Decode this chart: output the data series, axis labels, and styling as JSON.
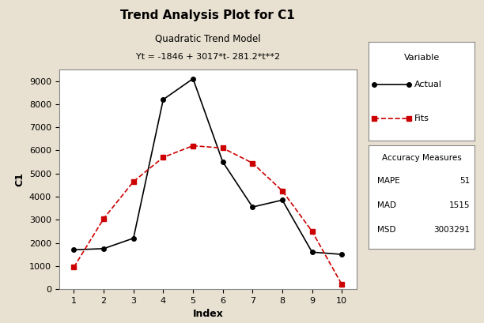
{
  "title": "Trend Analysis Plot for C1",
  "subtitle1": "Quadratic Trend Model",
  "subtitle2": "Yt = -1846 + 3017*t- 281.2*t**2",
  "xlabel": "Index",
  "ylabel": "C1",
  "x": [
    1,
    2,
    3,
    4,
    5,
    6,
    7,
    8,
    9,
    10
  ],
  "actual": [
    1700,
    1750,
    2200,
    8200,
    9100,
    5500,
    3550,
    3850,
    1600,
    1500
  ],
  "fits": [
    950,
    3050,
    4650,
    5700,
    6200,
    6100,
    5450,
    4250,
    2500,
    200
  ],
  "actual_color": "#000000",
  "fits_color": "#cc0000",
  "bg_color": "#e8e0d0",
  "plot_bg_color": "#ffffff",
  "ylim": [
    0,
    9500
  ],
  "xlim": [
    0.5,
    10.5
  ],
  "yticks": [
    0,
    1000,
    2000,
    3000,
    4000,
    5000,
    6000,
    7000,
    8000,
    9000
  ],
  "xticks": [
    1,
    2,
    3,
    4,
    5,
    6,
    7,
    8,
    9,
    10
  ],
  "accuracy": {
    "MAPE": "51",
    "MAD": "1515",
    "MSD": "3003291"
  }
}
